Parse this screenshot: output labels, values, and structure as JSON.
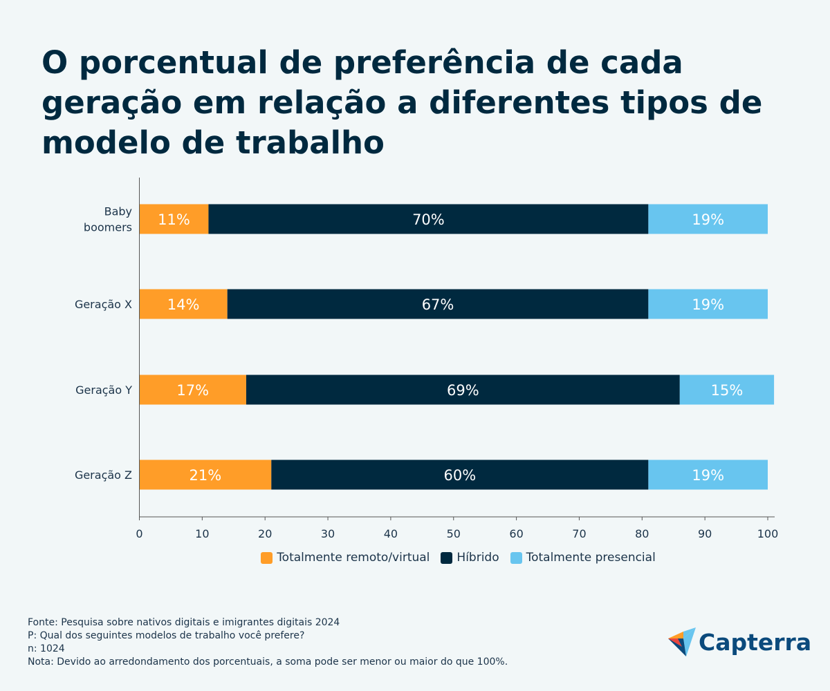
{
  "chart_data": {
    "type": "bar",
    "orientation": "horizontal",
    "stacked": true,
    "title": "O porcentual de preferência de cada geração em relação a diferentes tipos de modelo de trabalho",
    "categories": [
      "Baby boomers",
      "Geração X",
      "Geração Y",
      "Geração Z"
    ],
    "category_labels": [
      [
        "Baby",
        "boomers"
      ],
      [
        "Geração X"
      ],
      [
        "Geração Y"
      ],
      [
        "Geração Z"
      ]
    ],
    "series": [
      {
        "name": "Totalmente remoto/virtual",
        "color": "#ff9d28",
        "values": [
          11,
          14,
          17,
          21
        ],
        "labels": [
          "11%",
          "14%",
          "17%",
          "21%"
        ]
      },
      {
        "name": "Híbrido",
        "color": "#00293f",
        "values": [
          70,
          67,
          69,
          60
        ],
        "labels": [
          "70%",
          "67%",
          "69%",
          "60%"
        ]
      },
      {
        "name": "Totalmente presencial",
        "color": "#68c5ef",
        "values": [
          19,
          19,
          15,
          19
        ],
        "labels": [
          "19%",
          "19%",
          "15%",
          "19%"
        ]
      }
    ],
    "xlim": [
      0,
      100
    ],
    "xticks": [
      "0",
      "10",
      "20",
      "30",
      "40",
      "50",
      "60",
      "70",
      "80",
      "90",
      "100"
    ],
    "grid": false,
    "legend_position": "bottom"
  },
  "footer": {
    "source": "Fonte: Pesquisa sobre nativos digitais e imigrantes digitais 2024",
    "question": "P: Qual dos seguintes modelos de trabalho você prefere?",
    "n": "n: 1024",
    "note": "Nota: Devido ao arredondamento dos porcentuais, a soma pode ser menor ou maior do que 100%."
  },
  "logo": {
    "text": "Capterra"
  }
}
